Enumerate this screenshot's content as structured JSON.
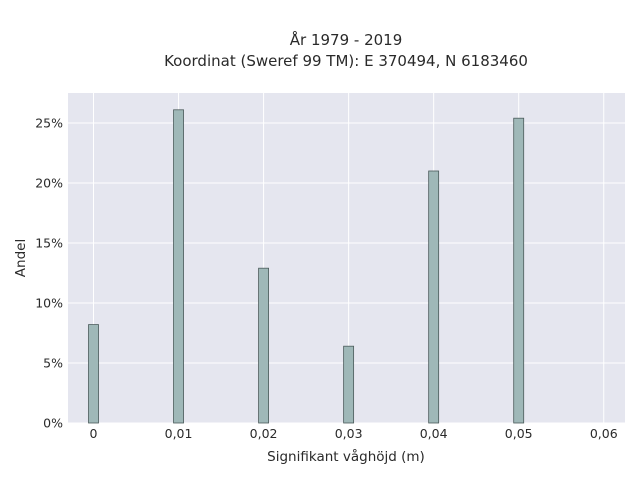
{
  "chart_data": {
    "type": "bar",
    "title_line1": "År 1979 - 2019",
    "title_line2": "Koordinat (Sweref 99 TM): E 370494, N 6183460",
    "xlabel": "Signifikant våghöjd (m)",
    "ylabel": "Andel",
    "x": [
      0,
      0.01,
      0.02,
      0.03,
      0.04,
      0.05
    ],
    "values": [
      8.2,
      26.1,
      12.9,
      6.4,
      21.0,
      25.4
    ],
    "xlim": [
      -0.003,
      0.0625
    ],
    "ylim": [
      0,
      27.5
    ],
    "x_ticks": [
      "0",
      "0,01",
      "0,02",
      "0,03",
      "0,04",
      "0,05",
      "0,06"
    ],
    "x_tick_values": [
      0,
      0.01,
      0.02,
      0.03,
      0.04,
      0.05,
      0.06
    ],
    "y_ticks": [
      "0%",
      "5%",
      "10%",
      "15%",
      "20%",
      "25%"
    ],
    "y_tick_values": [
      0,
      5,
      10,
      15,
      20,
      25
    ],
    "bar_color": "#9fb8b8",
    "bar_stroke": "#4a5a5a",
    "plot_bg": "#e5e6ef",
    "grid": true
  }
}
